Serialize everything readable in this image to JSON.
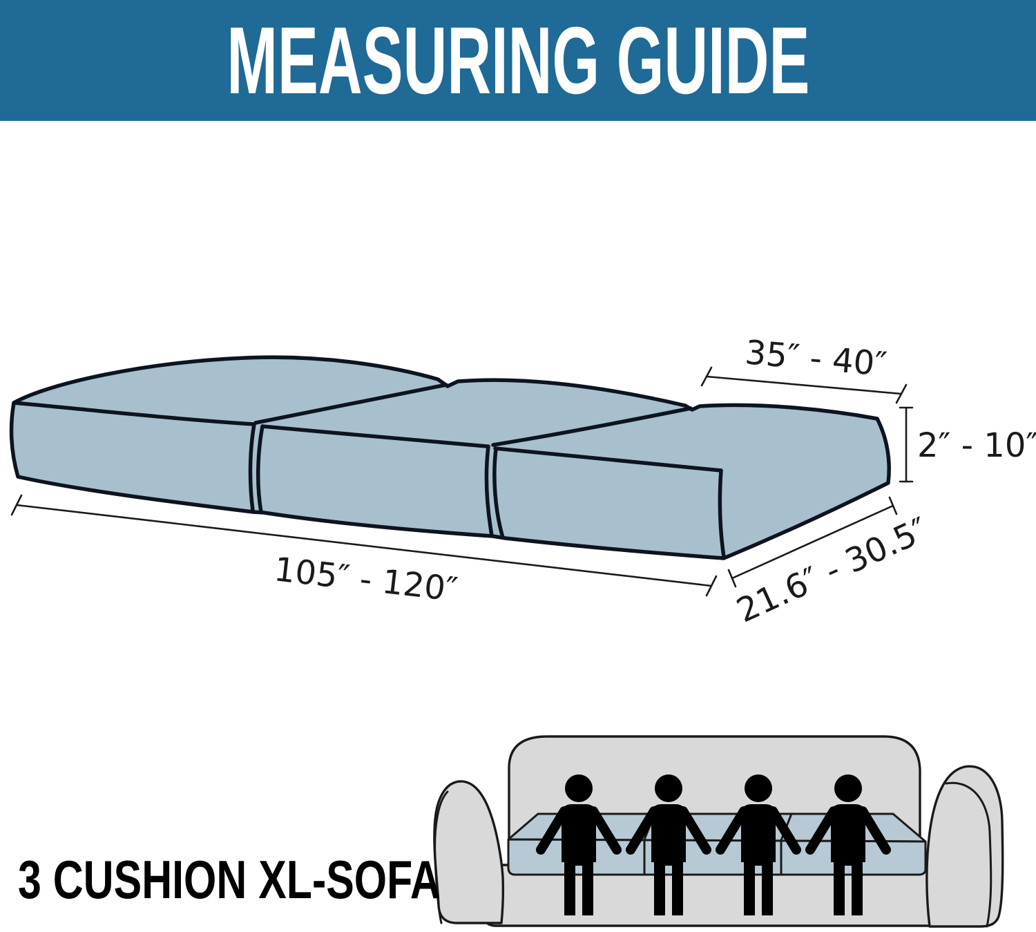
{
  "header": {
    "title": "MEASURING GUIDE"
  },
  "diagram": {
    "labels": {
      "cushion_width": "35″ - 40″",
      "thickness": "2″ - 10″",
      "total_length": "105″ - 120″",
      "cushion_depth": "21.6″ - 30.5″"
    },
    "cushion_count": 3
  },
  "footer": {
    "caption": "3 CUSHION XL-SOFA",
    "person_count": 4
  },
  "colors": {
    "header_bg": "#1f6a96",
    "cushion_fill": "#a8c0ce",
    "outline": "#0e141f",
    "dim_lines": "#1a1a1a",
    "sofa_fill": "#d9d9d9",
    "sofa_outline": "#1a1a1a",
    "footer_cushion_fill": "#b7c9d5",
    "person": "#000000"
  }
}
